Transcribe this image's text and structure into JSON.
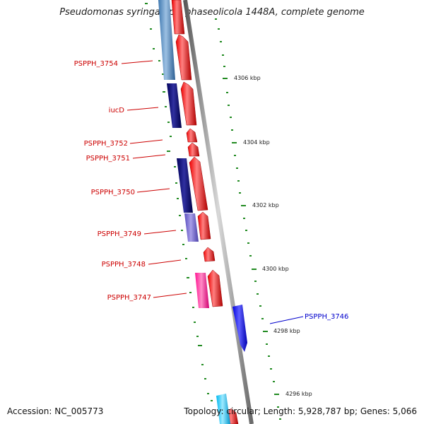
{
  "title": "Pseudomonas syringae pv. phaseolicola 1448A, complete genome",
  "accession": "Accession: NC_005773",
  "summary": "Topology: circular; Length: 5,928,787 bp; Genes: 5,066",
  "colors": {
    "reverse_gene_label": "#cc0000",
    "forward_gene_label": "#0000cc",
    "tick": "#228b22",
    "backbone": "#808080"
  },
  "genes": [
    {
      "id": "g3754",
      "label": "PSPPH_3754",
      "color_name": "steel-blue"
    },
    {
      "id": "giucD",
      "label": "iucD",
      "color_name": "navy"
    },
    {
      "id": "g3752",
      "label": "PSPPH_3752",
      "color_name": "red"
    },
    {
      "id": "g3751",
      "label": "PSPPH_3751",
      "color_name": "red"
    },
    {
      "id": "g3750",
      "label": "PSPPH_3750",
      "color_name": "navy"
    },
    {
      "id": "g3749",
      "label": "PSPPH_3749",
      "color_name": "slate-blue"
    },
    {
      "id": "g3748",
      "label": "PSPPH_3748",
      "color_name": "red"
    },
    {
      "id": "g3747",
      "label": "PSPPH_3747",
      "color_name": "deep-pink"
    },
    {
      "id": "g3746",
      "label": "PSPPH_3746",
      "color_name": "blue"
    }
  ],
  "kbp_labels": [
    "4306 kbp",
    "4304 kbp",
    "4302 kbp",
    "4300 kbp",
    "4298 kbp",
    "4296 kbp"
  ]
}
